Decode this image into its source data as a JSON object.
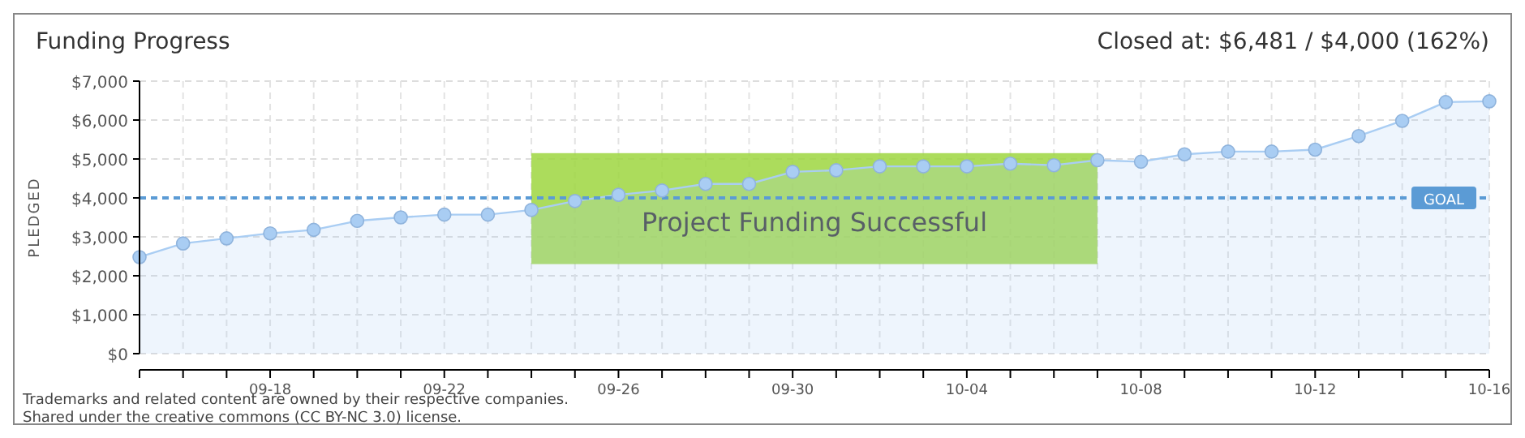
{
  "chart_data": {
    "type": "area",
    "title": "Funding Progress",
    "subtitle": "Closed at: $6,481 / $4,000 (162%)",
    "ylabel": "PLEDGED",
    "categories": [
      null,
      null,
      null,
      "09-18",
      null,
      null,
      null,
      "09-22",
      null,
      null,
      null,
      "09-26",
      null,
      null,
      null,
      "09-30",
      null,
      null,
      null,
      "10-04",
      null,
      null,
      null,
      "10-08",
      null,
      null,
      null,
      "10-12",
      null,
      null,
      null,
      "10-16"
    ],
    "series": [
      {
        "color": "#a9cdf3",
        "values": [
          2480,
          2830,
          2960,
          3090,
          3180,
          3410,
          3500,
          3570,
          3570,
          3690,
          3920,
          4080,
          4190,
          4360,
          4360,
          4670,
          4710,
          4810,
          4810,
          4810,
          4880,
          4840,
          4970,
          4930,
          5120,
          5190,
          5190,
          5240,
          5590,
          5980,
          6460,
          6481
        ]
      }
    ],
    "ylim": [
      0,
      7000
    ],
    "yticks": [
      {
        "value": 0,
        "label": "$0"
      },
      {
        "value": 1000,
        "label": "$1,000"
      },
      {
        "value": 2000,
        "label": "$2,000"
      },
      {
        "value": 3000,
        "label": "$3,000"
      },
      {
        "value": 4000,
        "label": "$4,000"
      },
      {
        "value": 5000,
        "label": "$5,000"
      },
      {
        "value": 6000,
        "label": "$6,000"
      },
      {
        "value": 7000,
        "label": "$7,000"
      }
    ],
    "ref_lines": [
      {
        "axis": "y",
        "value": 4000,
        "label": "GOAL",
        "color": "#5b9bd5",
        "line_style": "dashed"
      }
    ],
    "annotations": [
      "Project Funding Successful",
      "Trademarks and related content are owned by their respective companies.",
      "Shared under the creative commons (CC BY-NC 3.0) license."
    ],
    "grid": true,
    "marker": "circle"
  }
}
